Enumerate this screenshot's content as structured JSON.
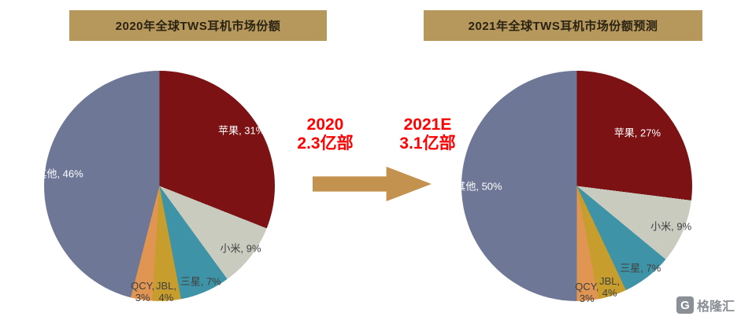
{
  "page": {
    "background": "#ffffff"
  },
  "center": {
    "before": {
      "line1": "2020",
      "line2": "2.3亿部"
    },
    "after": {
      "line1": "2021E",
      "line2": "3.1亿部"
    },
    "text_color": "#ff0000",
    "arrow_color": "#c3924e"
  },
  "watermark": {
    "logo_letter": "G",
    "text": "格隆汇"
  },
  "chart_data": [
    {
      "type": "pie",
      "title": "2020年全球TWS耳机市场份额",
      "labels": [
        "苹果",
        "小米",
        "三星",
        "JBL",
        "QCY",
        "其他"
      ],
      "values": [
        31,
        9,
        7,
        4,
        3,
        46
      ],
      "colors": [
        "#7c1214",
        "#c8cbbd",
        "#3f93a6",
        "#c79e2e",
        "#e09552",
        "#6e7796"
      ],
      "label_text_colors": [
        "#ffffff",
        "#404040",
        "#404040",
        "#404040",
        "#404040",
        "#ffffff"
      ],
      "label_radius": [
        0.86,
        0.89,
        0.9,
        0.92,
        0.93,
        0.87
      ],
      "label_multiline": [
        false,
        false,
        false,
        true,
        true,
        false
      ],
      "start_angle_deg": 0,
      "direction": "clockwise",
      "legend": "none"
    },
    {
      "type": "pie",
      "title": "2021年全球TWS耳机市场份额预测",
      "labels": [
        "苹果",
        "小米",
        "三星",
        "JBL",
        "QCY",
        "其他"
      ],
      "values": [
        27,
        9,
        7,
        4,
        3,
        50
      ],
      "colors": [
        "#7c1214",
        "#c8cbbd",
        "#3f93a6",
        "#c79e2e",
        "#e09552",
        "#6e7796"
      ],
      "label_text_colors": [
        "#ffffff",
        "#404040",
        "#404040",
        "#404040",
        "#404040",
        "#ffffff"
      ],
      "label_radius": [
        0.7,
        0.89,
        0.9,
        0.92,
        0.93,
        0.85
      ],
      "label_multiline": [
        false,
        false,
        false,
        true,
        true,
        false
      ],
      "start_angle_deg": 0,
      "direction": "clockwise",
      "legend": "none"
    }
  ]
}
